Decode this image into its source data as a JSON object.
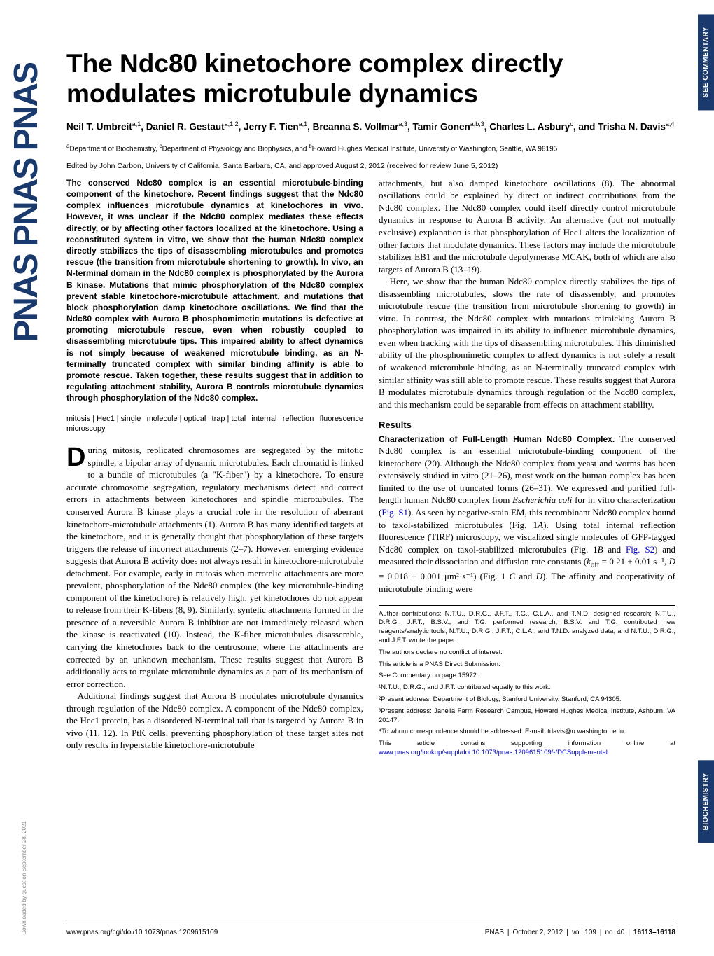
{
  "journal": {
    "logo_text": "PNAS",
    "logo_color": "#1a3a6e"
  },
  "side_tabs": {
    "commentary": "SEE COMMENTARY",
    "section": "BIOCHEMISTRY"
  },
  "download": "Downloaded by guest on September 28, 2021",
  "article": {
    "title": "The Ndc80 kinetochore complex directly modulates microtubule dynamics",
    "authors_html": "Neil T. Umbreit<sup>a,1</sup>, Daniel R. Gestaut<sup>a,1,2</sup>, Jerry F. Tien<sup>a,1</sup>, Breanna S. Vollmar<sup>a,3</sup>, Tamir Gonen<sup>a,b,3</sup>, Charles L. Asbury<sup>c</sup>, and Trisha N. Davis<sup>a,4</sup>",
    "affiliations_html": "<sup>a</sup>Department of Biochemistry, <sup>c</sup>Department of Physiology and Biophysics, and <sup>b</sup>Howard Hughes Medical Institute, University of Washington, Seattle, WA 98195",
    "edited_by": "Edited by John Carbon, University of California, Santa Barbara, CA, and approved August 2, 2012 (received for review June 5, 2012)",
    "abstract": "The conserved Ndc80 complex is an essential microtubule-binding component of the kinetochore. Recent findings suggest that the Ndc80 complex influences microtubule dynamics at kinetochores in vivo. However, it was unclear if the Ndc80 complex mediates these effects directly, or by affecting other factors localized at the kinetochore. Using a reconstituted system in vitro, we show that the human Ndc80 complex directly stabilizes the tips of disassembling microtubules and promotes rescue (the transition from microtubule shortening to growth). In vivo, an N-terminal domain in the Ndc80 complex is phosphorylated by the Aurora B kinase. Mutations that mimic phosphorylation of the Ndc80 complex prevent stable kinetochore-microtubule attachment, and mutations that block phosphorylation damp kinetochore oscillations. We find that the Ndc80 complex with Aurora B phosphomimetic mutations is defective at promoting microtubule rescue, even when robustly coupled to disassembling microtubule tips. This impaired ability to affect dynamics is not simply because of weakened microtubule binding, as an N-terminally truncated complex with similar binding affinity is able to promote rescue. Taken together, these results suggest that in addition to regulating attachment stability, Aurora B controls microtubule dynamics through phosphorylation of the Ndc80 complex.",
    "keywords": [
      "mitosis",
      "Hec1",
      "single molecule",
      "optical trap",
      "total internal reflection fluorescence microscopy"
    ],
    "body_col1_p1_first": "D",
    "body_col1_p1": "uring mitosis, replicated chromosomes are segregated by the mitotic spindle, a bipolar array of dynamic microtubules. Each chromatid is linked to a bundle of microtubules (a \"K-fiber\") by a kinetochore. To ensure accurate chromosome segregation, regulatory mechanisms detect and correct errors in attachments between kinetochores and spindle microtubules. The conserved Aurora B kinase plays a crucial role in the resolution of aberrant kinetochore-microtubule attachments (1). Aurora B has many identified targets at the kinetochore, and it is generally thought that phosphorylation of these targets triggers the release of incorrect attachments (2–7). However, emerging evidence suggests that Aurora B activity does not always result in kinetochore-microtubule detachment. For example, early in mitosis when merotelic attachments are more prevalent, phosphorylation of the Ndc80 complex (the key microtubule-binding component of the kinetochore) is relatively high, yet kinetochores do not appear to release from their K-fibers (8, 9). Similarly, syntelic attachments formed in the presence of a reversible Aurora B inhibitor are not immediately released when the kinase is reactivated (10). Instead, the K-fiber microtubules disassemble, carrying the kinetochores back to the centrosome, where the attachments are corrected by an unknown mechanism. These results suggest that Aurora B additionally acts to regulate microtubule dynamics as a part of its mechanism of error correction.",
    "body_col1_p2": "Additional findings suggest that Aurora B modulates microtubule dynamics through regulation of the Ndc80 complex. A component of the Ndc80 complex, the Hec1 protein, has a disordered N-terminal tail that is targeted by Aurora B in vivo (11, 12). In PtK cells, preventing phosphorylation of these target sites not only results in hyperstable kinetochore-microtubule",
    "body_col2_p1": "attachments, but also damped kinetochore oscillations (8). The abnormal oscillations could be explained by direct or indirect contributions from the Ndc80 complex. The Ndc80 complex could itself directly control microtubule dynamics in response to Aurora B activity. An alternative (but not mutually exclusive) explanation is that phosphorylation of Hec1 alters the localization of other factors that modulate dynamics. These factors may include the microtubule stabilizer EB1 and the microtubule depolymerase MCAK, both of which are also targets of Aurora B (13–19).",
    "body_col2_p2": "Here, we show that the human Ndc80 complex directly stabilizes the tips of disassembling microtubules, slows the rate of disassembly, and promotes microtubule rescue (the transition from microtubule shortening to growth) in vitro. In contrast, the Ndc80 complex with mutations mimicking Aurora B phosphorylation was impaired in its ability to influence microtubule dynamics, even when tracking with the tips of disassembling microtubules. This diminished ability of the phosphomimetic complex to affect dynamics is not solely a result of weakened microtubule binding, as an N-terminally truncated complex with similar affinity was still able to promote rescue. These results suggest that Aurora B modulates microtubule dynamics through regulation of the Ndc80 complex, and this mechanism could be separable from effects on attachment stability.",
    "results_head": "Results",
    "results_runin": "Characterization of Full-Length Human Ndc80 Complex.",
    "body_col2_p3a": " The conserved Ndc80 complex is an essential microtubule-binding component of the kinetochore (20). Although the Ndc80 complex from yeast and worms has been extensively studied in vitro (21–26), most work on the human complex has been limited to the use of truncated forms (26–31). We expressed and purified full-length human Ndc80 complex from ",
    "body_col2_p3_ital": "Escherichia coli",
    "body_col2_p3b": " for in vitro characterization (",
    "body_col2_p3_link1": "Fig. S1",
    "body_col2_p3c": "). As seen by negative-stain EM, this recombinant Ndc80 complex bound to taxol-stabilized microtubules (Fig. 1",
    "body_col2_p3_ital2": "A",
    "body_col2_p3d": "). Using total internal reflection fluorescence (TIRF) microscopy, we visualized single molecules of GFP-tagged Ndc80 complex on taxol-stabilized microtubules (Fig. 1",
    "body_col2_p3_ital3": "B",
    "body_col2_p3e": " and ",
    "body_col2_p3_link2": "Fig. S2",
    "body_col2_p3f": ") and measured their dissociation and diffusion rate constants (",
    "body_col2_p3_math": "k",
    "body_col2_p3_sub": "off",
    "body_col2_p3g": " = 0.21 ± 0.01 s⁻¹, ",
    "body_col2_p3_ital4": "D",
    "body_col2_p3h": " = 0.018 ± 0.001 μm²·s⁻¹) (Fig. 1 ",
    "body_col2_p3_ital5": "C",
    "body_col2_p3i": " and ",
    "body_col2_p3_ital6": "D",
    "body_col2_p3j": "). The affinity and cooperativity of microtubule binding were"
  },
  "footnotes": {
    "contributions": "Author contributions: N.T.U., D.R.G., J.F.T., T.G., C.L.A., and T.N.D. designed research; N.T.U., D.R.G., J.F.T., B.S.V., and T.G. performed research; B.S.V. and T.G. contributed new reagents/analytic tools; N.T.U., D.R.G., J.F.T., C.L.A., and T.N.D. analyzed data; and N.T.U., D.R.G., and J.F.T. wrote the paper.",
    "conflict": "The authors declare no conflict of interest.",
    "submission": "This article is a PNAS Direct Submission.",
    "commentary": "See Commentary on page 15972.",
    "note1": "¹N.T.U., D.R.G., and J.F.T. contributed equally to this work.",
    "note2": "²Present address: Department of Biology, Stanford University, Stanford, CA 94305.",
    "note3": "³Present address: Janelia Farm Research Campus, Howard Hughes Medical Institute, Ashburn, VA 20147.",
    "note4": "⁴To whom correspondence should be addressed. E-mail: tdavis@u.washington.edu.",
    "supp_a": "This article contains supporting information online at ",
    "supp_link": "www.pnas.org/lookup/suppl/doi:10.1073/pnas.1209615109/-/DCSupplemental",
    "supp_b": "."
  },
  "footer": {
    "doi": "www.pnas.org/cgi/doi/10.1073/pnas.1209615109",
    "journal": "PNAS",
    "date": "October 2, 2012",
    "volume": "vol. 109",
    "issue": "no. 40",
    "pages": "16113–16118"
  }
}
